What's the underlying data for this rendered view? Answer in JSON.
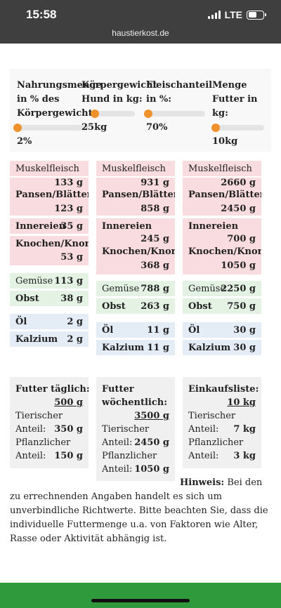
{
  "status_bar": {
    "time": "15:58",
    "network": "LTE"
  },
  "browser": {
    "url": "haustierkost.de"
  },
  "inputs": [
    {
      "label": "Nahrungsmenge\nin % des\nKörpergewichts:",
      "value": "2%",
      "level": 0.05
    },
    {
      "label": "Körpergewicht\nHund in kg:",
      "value": "25kg",
      "level": 0.05
    },
    {
      "label": "Fleischanteil\nin %:",
      "value": "70%",
      "level": 0.05
    },
    {
      "label": "Menge\nFutter in\nkg:",
      "value": "10kg",
      "level": 0.05
    }
  ],
  "columns": [
    {
      "muskelfleisch": {
        "label": "Muskelfleisch",
        "value": "133 g"
      },
      "pansen": {
        "label": "Pansen/Blättermagen",
        "value": "123 g"
      },
      "innereien": {
        "label": "Innereien",
        "value": "35 g"
      },
      "knochen": {
        "label": "Knochen/Knorpel",
        "value": "53 g"
      },
      "gemuese": {
        "label": "Gemüse",
        "value": "113 g"
      },
      "obst": {
        "label": "Obst",
        "value": "38 g"
      },
      "oel": {
        "label": "Öl",
        "value": "2 g"
      },
      "kalzium": {
        "label": "Kalzium",
        "value": "2 g"
      }
    },
    {
      "muskelfleisch": {
        "label": "Muskelfleisch",
        "value": "931 g"
      },
      "pansen": {
        "label": "Pansen/Blättermagen",
        "value": "858 g"
      },
      "innereien": {
        "label": "Innereien",
        "value": "245 g"
      },
      "knochen": {
        "label": "Knochen/Knorpel",
        "value": "368 g"
      },
      "gemuese": {
        "label": "Gemüse",
        "value": "788 g"
      },
      "obst": {
        "label": "Obst",
        "value": "263 g"
      },
      "oel": {
        "label": "Öl",
        "value": "11 g"
      },
      "kalzium": {
        "label": "Kalzium",
        "value": "11 g"
      }
    },
    {
      "muskelfleisch": {
        "label": "Muskelfleisch",
        "value": "2660 g"
      },
      "pansen": {
        "label": "Pansen/Blättermagen",
        "value": "2450 g"
      },
      "innereien": {
        "label": "Innereien",
        "value": "700 g"
      },
      "knochen": {
        "label": "Knochen/Knorpel",
        "value": "1050 g"
      },
      "gemuese": {
        "label": "Gemüse",
        "value": "2250 g"
      },
      "obst": {
        "label": "Obst",
        "value": "750 g"
      },
      "oel": {
        "label": "Öl",
        "value": "30 g"
      },
      "kalzium": {
        "label": "Kalzium",
        "value": "30 g"
      }
    }
  ],
  "summaries": [
    {
      "title": "Futter täglich:",
      "total": "500 g",
      "animal_label_1": "Tierischer",
      "animal_label_2": "Anteil:",
      "animal_value": "350 g",
      "plant_label_1": "Pflanzlicher",
      "plant_label_2": "Anteil:",
      "plant_value": "150 g"
    },
    {
      "title_1": "Futter",
      "title_2": "wöchentlich:",
      "total": "3500 g",
      "animal_label_1": "Tierischer",
      "animal_label_2": "Anteil:",
      "animal_value": "2450 g",
      "plant_label_1": "Pflanzlicher",
      "plant_label_2": "Anteil:",
      "plant_value": "1050 g"
    },
    {
      "title": "Einkaufsliste:",
      "total": "10 kg",
      "animal_label_1": "Tierischer",
      "animal_label_2": "Anteil:",
      "animal_value": "7 kg",
      "plant_label_1": "Pflanzlicher",
      "plant_label_2": "Anteil:",
      "plant_value": "3 kg"
    }
  ],
  "note": {
    "label": "Hinweis:",
    "text": "Bei den zu errechnenden Angaben handelt es sich um unverbindliche Richtwerte. Bitte beachten Sie, dass die individuelle Futtermenge u.a. von Faktoren wie Alter, Rasse oder Aktivität abhängig ist."
  },
  "colors": {
    "thumb": "#f0922c",
    "meat_bg": "#f9dcdf",
    "veg_bg": "#e3f2e3",
    "supp_bg": "#e4ecf6",
    "footer": "#2f9a3b"
  }
}
